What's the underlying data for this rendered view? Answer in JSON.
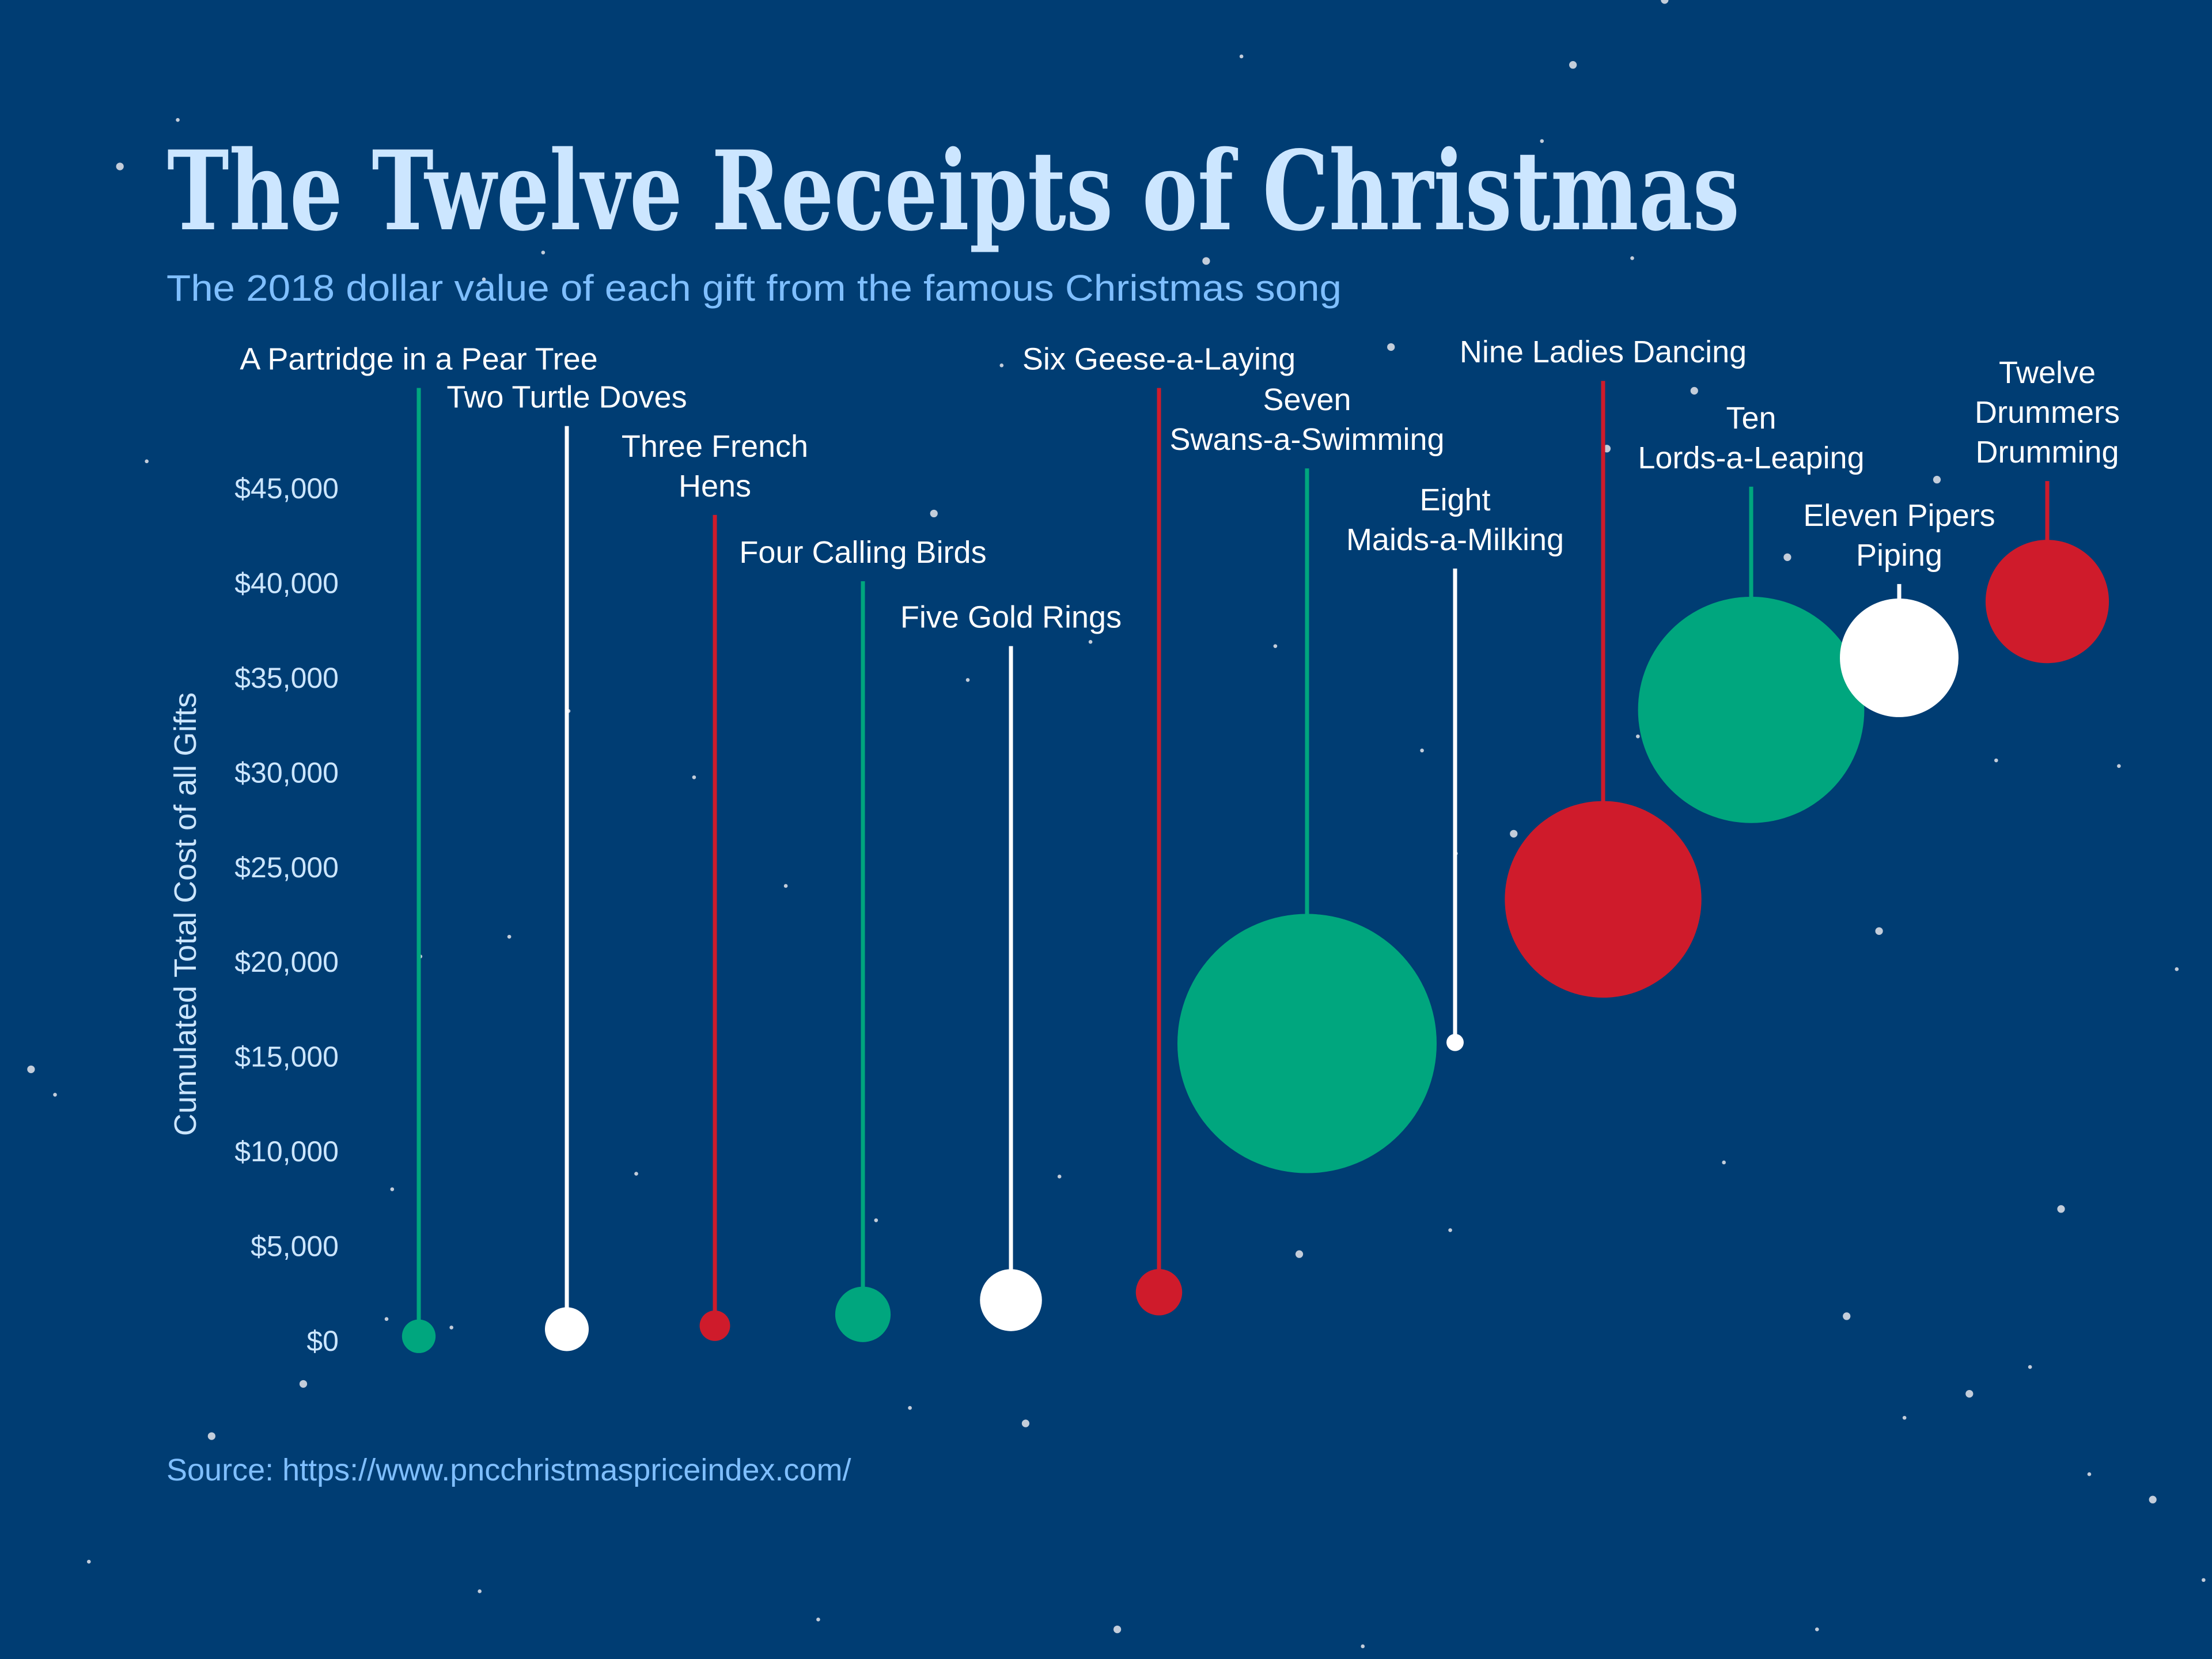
{
  "title": "The Twelve Receipts of Christmas",
  "subtitle": "The 2018 dollar value of each gift from the famous Christmas song",
  "source": "Source: https://www.pncchristmaspriceindex.com/",
  "colors": {
    "background": "#003d73",
    "title": "#cce6ff",
    "subtitle": "#7fbfff",
    "green": "#00a67e",
    "white": "#ffffff",
    "red": "#cf1b2b"
  },
  "chart_data": {
    "type": "scatter",
    "encoding": "bubble; y = cumulated total cost, bubble area = item cost",
    "ylabel": "Cumulated Total Cost of all Gifts",
    "ylim": [
      0,
      45000
    ],
    "yticks": [
      "$0",
      "$5,000",
      "$10,000",
      "$15,000",
      "$20,000",
      "$25,000",
      "$30,000",
      "$35,000",
      "$40,000",
      "$45,000"
    ],
    "ytick_values": [
      0,
      5000,
      10000,
      15000,
      20000,
      25000,
      30000,
      35000,
      40000,
      45000
    ],
    "grid": false,
    "points": [
      {
        "label": [
          "A Partridge in a Pear Tree"
        ],
        "cost": 220.68,
        "cumulative": 220.68,
        "color": "green"
      },
      {
        "label": [
          "Two Turtle Doves"
        ],
        "cost": 375,
        "cumulative": 595.68,
        "color": "white"
      },
      {
        "label": [
          "Three French",
          "Hens"
        ],
        "cost": 181.5,
        "cumulative": 777.18,
        "color": "red"
      },
      {
        "label": [
          "Four Calling Birds"
        ],
        "cost": 599.96,
        "cumulative": 1377.14,
        "color": "green"
      },
      {
        "label": [
          "Five Gold Rings"
        ],
        "cost": 750,
        "cumulative": 2127.14,
        "color": "white"
      },
      {
        "label": [
          "Six Geese-a-Laying"
        ],
        "cost": 420,
        "cumulative": 2547.14,
        "color": "red"
      },
      {
        "label": [
          "Seven",
          "Swans-a-Swimming"
        ],
        "cost": 13125,
        "cumulative": 15672.14,
        "color": "green"
      },
      {
        "label": [
          "Eight",
          "Maids-a-Milking"
        ],
        "cost": 58,
        "cumulative": 15730.14,
        "color": "white"
      },
      {
        "label": [
          "Nine Ladies Dancing"
        ],
        "cost": 7552.84,
        "cumulative": 23282.98,
        "color": "red"
      },
      {
        "label": [
          "Ten",
          "Lords-a-Leaping"
        ],
        "cost": 10000,
        "cumulative": 33282.98,
        "color": "green"
      },
      {
        "label": [
          "Eleven Pipers",
          "Piping"
        ],
        "cost": 2748,
        "cumulative": 36030.98,
        "color": "white"
      },
      {
        "label": [
          "Twelve",
          "Drummers",
          "Drumming"
        ],
        "cost": 2972,
        "cumulative": 39002.98,
        "color": "red"
      }
    ]
  }
}
